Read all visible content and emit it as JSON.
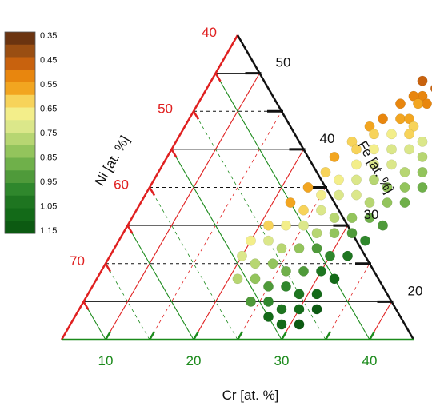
{
  "chart_data": {
    "type": "scatter",
    "subtype": "ternary",
    "axes": {
      "ni": {
        "label": "Ni [at. %]",
        "ticks": [
          40,
          50,
          60,
          70
        ],
        "color": "#e02020"
      },
      "fe": {
        "label": "Fe [at. %]",
        "ticks": [
          20,
          30,
          40,
          50
        ],
        "color": "#111111"
      },
      "cr": {
        "label": "Cr [at. %]",
        "ticks": [
          10,
          20,
          30,
          40
        ],
        "color": "#1b8a1b"
      }
    },
    "colorbar": {
      "labels": [
        "0.35",
        "0.45",
        "0.55",
        "0.65",
        "0.75",
        "0.85",
        "0.95",
        "1.05",
        "1.15"
      ],
      "colors": [
        "#6b3410",
        "#9a4e12",
        "#c8620e",
        "#e8860e",
        "#f2a520",
        "#f7d35a",
        "#f3ee8a",
        "#dbe78a",
        "#b7d672",
        "#93c45c",
        "#6fb04a",
        "#4f9a3a",
        "#2f872c",
        "#1e7520",
        "#136a18",
        "#0c5a12"
      ],
      "range": [
        0.3,
        1.2
      ]
    },
    "points": [
      {
        "cr": 30,
        "fe": 51,
        "v": 0.36
      },
      {
        "cr": 31,
        "fe": 50,
        "v": 0.4
      },
      {
        "cr": 29,
        "fe": 49,
        "v": 0.42
      },
      {
        "cr": 31,
        "fe": 48,
        "v": 0.45
      },
      {
        "cr": 30,
        "fe": 47,
        "v": 0.47
      },
      {
        "cr": 29,
        "fe": 47,
        "v": 0.5
      },
      {
        "cr": 31,
        "fe": 46,
        "v": 0.52
      },
      {
        "cr": 30,
        "fe": 46,
        "v": 0.55
      },
      {
        "cr": 28,
        "fe": 46,
        "v": 0.48
      },
      {
        "cr": 27,
        "fe": 44,
        "v": 0.52
      },
      {
        "cr": 29,
        "fe": 44,
        "v": 0.55
      },
      {
        "cr": 30,
        "fe": 44,
        "v": 0.58
      },
      {
        "cr": 31,
        "fe": 43,
        "v": 0.62
      },
      {
        "cr": 26,
        "fe": 43,
        "v": 0.55
      },
      {
        "cr": 27,
        "fe": 42,
        "v": 0.6
      },
      {
        "cr": 29,
        "fe": 42,
        "v": 0.65
      },
      {
        "cr": 31,
        "fe": 42,
        "v": 0.6
      },
      {
        "cr": 33,
        "fe": 41,
        "v": 0.7
      },
      {
        "cr": 25,
        "fe": 41,
        "v": 0.6
      },
      {
        "cr": 26,
        "fe": 40,
        "v": 0.62
      },
      {
        "cr": 28,
        "fe": 40,
        "v": 0.66
      },
      {
        "cr": 30,
        "fe": 40,
        "v": 0.7
      },
      {
        "cr": 32,
        "fe": 40,
        "v": 0.72
      },
      {
        "cr": 34,
        "fe": 39,
        "v": 0.8
      },
      {
        "cr": 24,
        "fe": 39,
        "v": 0.56
      },
      {
        "cr": 27,
        "fe": 38,
        "v": 0.64
      },
      {
        "cr": 29,
        "fe": 38,
        "v": 0.7
      },
      {
        "cr": 31,
        "fe": 38,
        "v": 0.74
      },
      {
        "cr": 33,
        "fe": 37,
        "v": 0.8
      },
      {
        "cr": 35,
        "fe": 37,
        "v": 0.85
      },
      {
        "cr": 24,
        "fe": 37,
        "v": 0.62
      },
      {
        "cr": 26,
        "fe": 36,
        "v": 0.66
      },
      {
        "cr": 28,
        "fe": 36,
        "v": 0.72
      },
      {
        "cr": 30,
        "fe": 36,
        "v": 0.76
      },
      {
        "cr": 32,
        "fe": 35,
        "v": 0.82
      },
      {
        "cr": 34,
        "fe": 35,
        "v": 0.86
      },
      {
        "cr": 36,
        "fe": 35,
        "v": 0.9
      },
      {
        "cr": 23,
        "fe": 35,
        "v": 0.58
      },
      {
        "cr": 25,
        "fe": 34,
        "v": 0.66
      },
      {
        "cr": 27,
        "fe": 34,
        "v": 0.7
      },
      {
        "cr": 29,
        "fe": 34,
        "v": 0.74
      },
      {
        "cr": 31,
        "fe": 33,
        "v": 0.8
      },
      {
        "cr": 33,
        "fe": 33,
        "v": 0.84
      },
      {
        "cr": 35,
        "fe": 33,
        "v": 0.9
      },
      {
        "cr": 22,
        "fe": 33,
        "v": 0.55
      },
      {
        "cr": 24,
        "fe": 32,
        "v": 0.6
      },
      {
        "cr": 26,
        "fe": 32,
        "v": 0.7
      },
      {
        "cr": 28,
        "fe": 31,
        "v": 0.78
      },
      {
        "cr": 30,
        "fe": 31,
        "v": 0.82
      },
      {
        "cr": 32,
        "fe": 31,
        "v": 0.88
      },
      {
        "cr": 34,
        "fe": 30,
        "v": 0.92
      },
      {
        "cr": 21,
        "fe": 30,
        "v": 0.62
      },
      {
        "cr": 23,
        "fe": 30,
        "v": 0.66
      },
      {
        "cr": 25,
        "fe": 30,
        "v": 0.72
      },
      {
        "cr": 27,
        "fe": 29,
        "v": 0.8
      },
      {
        "cr": 29,
        "fe": 29,
        "v": 0.86
      },
      {
        "cr": 31,
        "fe": 29,
        "v": 0.94
      },
      {
        "cr": 33,
        "fe": 28,
        "v": 1.0
      },
      {
        "cr": 20,
        "fe": 28,
        "v": 0.65
      },
      {
        "cr": 22,
        "fe": 28,
        "v": 0.7
      },
      {
        "cr": 24,
        "fe": 27,
        "v": 0.78
      },
      {
        "cr": 26,
        "fe": 27,
        "v": 0.86
      },
      {
        "cr": 28,
        "fe": 27,
        "v": 0.92
      },
      {
        "cr": 30,
        "fe": 26,
        "v": 1.0
      },
      {
        "cr": 32,
        "fe": 26,
        "v": 1.05
      },
      {
        "cr": 20,
        "fe": 26,
        "v": 0.72
      },
      {
        "cr": 22,
        "fe": 25,
        "v": 0.78
      },
      {
        "cr": 24,
        "fe": 25,
        "v": 0.84
      },
      {
        "cr": 26,
        "fe": 24,
        "v": 0.9
      },
      {
        "cr": 28,
        "fe": 24,
        "v": 0.96
      },
      {
        "cr": 30,
        "fe": 24,
        "v": 1.05
      },
      {
        "cr": 32,
        "fe": 23,
        "v": 1.1
      },
      {
        "cr": 21,
        "fe": 23,
        "v": 0.8
      },
      {
        "cr": 23,
        "fe": 23,
        "v": 0.86
      },
      {
        "cr": 25,
        "fe": 22,
        "v": 0.92
      },
      {
        "cr": 27,
        "fe": 22,
        "v": 0.98
      },
      {
        "cr": 29,
        "fe": 21,
        "v": 1.05
      },
      {
        "cr": 31,
        "fe": 21,
        "v": 1.12
      },
      {
        "cr": 24,
        "fe": 20,
        "v": 0.95
      },
      {
        "cr": 26,
        "fe": 20,
        "v": 1.0
      },
      {
        "cr": 28,
        "fe": 19,
        "v": 1.08
      },
      {
        "cr": 30,
        "fe": 19,
        "v": 1.12
      },
      {
        "cr": 32,
        "fe": 19,
        "v": 1.15
      },
      {
        "cr": 27,
        "fe": 18,
        "v": 1.1
      },
      {
        "cr": 29,
        "fe": 17,
        "v": 1.14
      },
      {
        "cr": 31,
        "fe": 17,
        "v": 1.15
      }
    ]
  }
}
